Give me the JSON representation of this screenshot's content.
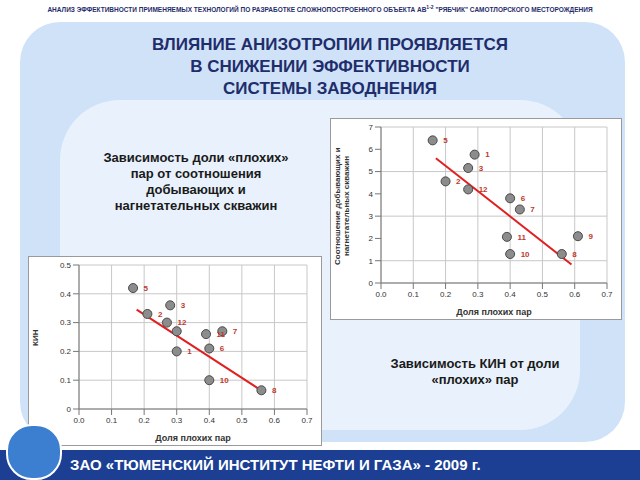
{
  "slide": {
    "header": [
      "АНАЛИЗ ЭФФЕКТИВНОСТИ ПРИМЕНЯЕМЫХ ТЕХНОЛОГИЙ ПО РАЗРАБОТКЕ СЛОЖНОПОСТРОЕННОГО ОБЪЕКТА АВ",
      "1-2",
      " \"РЯБЧИК\" САМОТЛОРСКОГО МЕСТОРОЖДЕНИЯ"
    ],
    "title": [
      "ВЛИЯНИЕ АНИЗОТРОПИИ ПРОЯВЛЯЕТСЯ",
      "В СНИЖЕНИИ ЭФФЕКТИВНОСТИ",
      "СИСТЕМЫ ЗАВОДНЕНИЯ"
    ],
    "footer": "ЗАО «ТЮМЕНСКИЙ ИНСТИТУТ НЕФТИ И ГАЗА» - 2009 г."
  },
  "chart_data": [
    {
      "type": "scatter",
      "title": [
        "Зависимость доли «плохих»",
        "пар от соотношения",
        "добывающих и",
        "нагнетательных скважин"
      ],
      "x_label": "Доля плохих пар",
      "y_label": "Соотношение добывающих и нагнетательных скважин",
      "x": [
        0.16,
        0.2,
        0.27,
        0.29,
        0.27,
        0.4,
        0.43,
        0.39,
        0.4,
        0.61,
        0.56
      ],
      "values": [
        6.4,
        4.56,
        5.16,
        5.76,
        4.2,
        3.8,
        3.3,
        2.07,
        1.3,
        2.1,
        1.3
      ],
      "labels": [
        "5",
        "2",
        "3",
        "1",
        "12",
        "6",
        "7",
        "11",
        "10",
        "9",
        "8"
      ],
      "color": "#8c8c8c",
      "marker": "circle",
      "trend": {
        "x": [
          0.17,
          0.59
        ],
        "values": [
          5.6,
          0.83
        ],
        "color": "#e02020",
        "line_style": "solid"
      },
      "xlim": [
        0,
        0.7
      ],
      "xticks": [
        {
          "value": 0,
          "label": "0.0"
        },
        0.1,
        0.2,
        0.3,
        0.4,
        0.5,
        0.6,
        0.7
      ],
      "ylim": [
        0,
        7
      ],
      "yticks": [
        0,
        1,
        2,
        3,
        4,
        5,
        6,
        7
      ],
      "grid": true
    },
    {
      "type": "scatter",
      "title": [
        "Зависимость КИН от доли",
        "«плохих» пар"
      ],
      "x_label": "Доля плохих пар",
      "y_label": "КИН",
      "x": [
        0.166,
        0.21,
        0.28,
        0.27,
        0.3,
        0.3,
        0.39,
        0.44,
        0.4,
        0.4,
        0.56
      ],
      "values": [
        0.42,
        0.33,
        0.36,
        0.3,
        0.27,
        0.2,
        0.26,
        0.27,
        0.21,
        0.1,
        0.065
      ],
      "labels": [
        "5",
        "2",
        "3",
        "12",
        null,
        "1",
        "11",
        "7",
        "6",
        "10",
        "8"
      ],
      "color": "#8c8c8c",
      "marker": "circle",
      "trend": {
        "x": [
          0.177,
          0.571
        ],
        "values": [
          0.345,
          0.056
        ],
        "color": "#e02020",
        "line_style": "solid"
      },
      "xlim": [
        0,
        0.7
      ],
      "xticks": [
        {
          "value": 0,
          "label": "0.0"
        },
        0.1,
        0.2,
        0.3,
        0.4,
        0.5,
        0.6,
        0.7
      ],
      "ylim": [
        0,
        0.5
      ],
      "yticks": [
        0,
        0.1,
        0.2,
        0.3,
        0.4,
        0.5
      ],
      "grid": true
    }
  ]
}
